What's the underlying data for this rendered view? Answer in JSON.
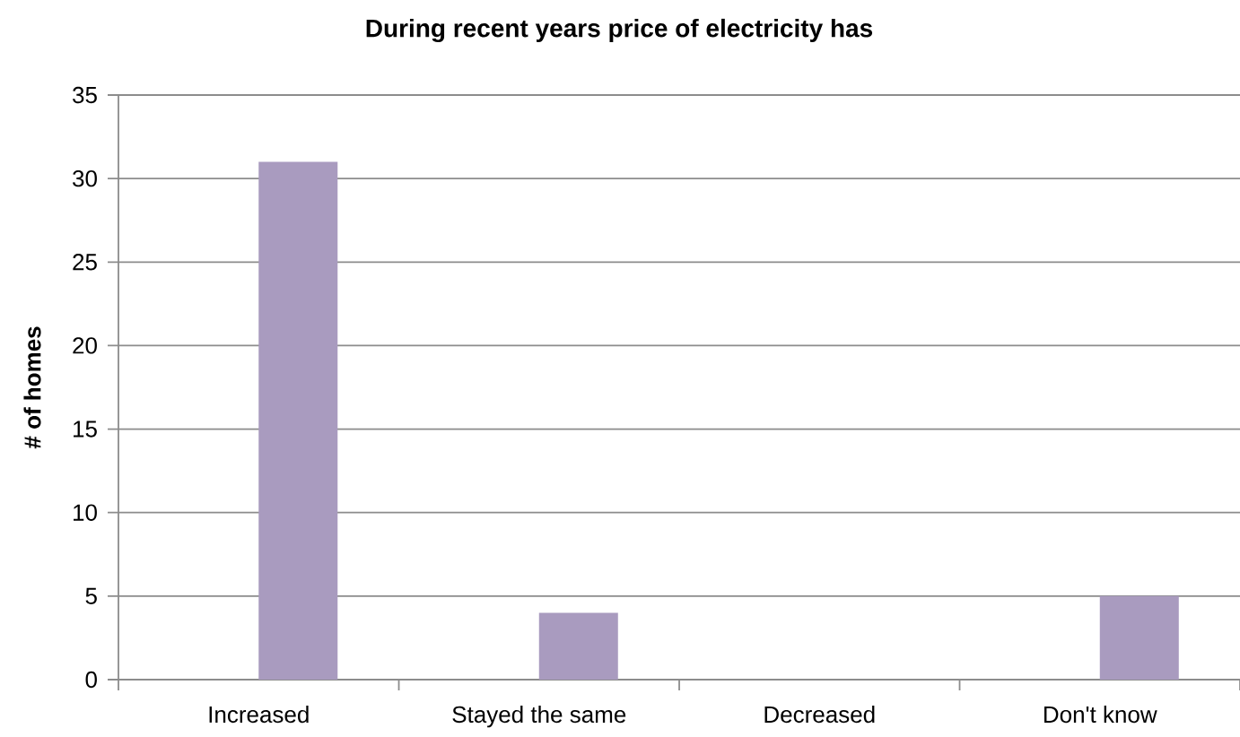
{
  "chart_data": {
    "type": "bar",
    "title": "During recent years price of electricity has",
    "ylabel": "# of homes",
    "categories": [
      "Increased",
      "Stayed the same",
      "Decreased",
      "Don't know"
    ],
    "values": [
      31,
      4,
      0,
      5
    ],
    "color": "#a99bbf",
    "ylim": [
      0,
      35
    ],
    "yticks": [
      0,
      5,
      10,
      15,
      20,
      25,
      30,
      35
    ],
    "grid": "y"
  }
}
